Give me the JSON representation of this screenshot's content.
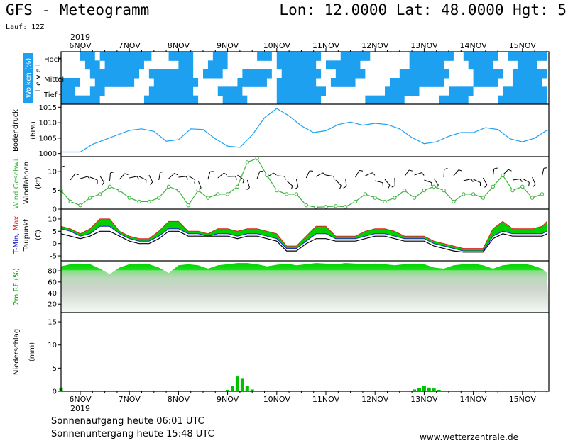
{
  "header": {
    "title": "GFS - Meteogramm",
    "coords": "Lon: 12.0000 Lat: 48.0000 Hgt: 5",
    "run": "Lauf: 12Z"
  },
  "footer": {
    "sunrise": "Sonnenaufgang heute 06:01 UTC",
    "sunset": "Sonnenuntergang heute 15:48 UTC",
    "credit": "www.wetterzentrale.de"
  },
  "colors": {
    "cloud": "#1ea0f0",
    "pressure": "#1ea0f0",
    "wind": "#3cb43c",
    "tmin": "#2020d0",
    "tmax": "#e02020",
    "dew": "#000000",
    "rh": "#00d000",
    "precip": "#00c000"
  },
  "chart_data": {
    "type": "meteogram",
    "year_label": "2019",
    "days": [
      "6NOV",
      "7NOV",
      "8NOV",
      "9NOV",
      "10NOV",
      "11NOV",
      "12NOV",
      "13NOV",
      "14NOV",
      "15NOV"
    ],
    "panels": [
      {
        "id": "clouds",
        "ylabel": "Wolken (%)",
        "ylabel2": "L e v e l",
        "levels": [
          "Hoch",
          "Mittel",
          "Tief"
        ]
      },
      {
        "id": "pressure",
        "ylabel": "Bodendruck",
        "unit": "(hPa)",
        "yticks": [
          1000,
          1005,
          1010,
          1015
        ],
        "ylim": [
          999,
          1016
        ],
        "x": [
          6,
          6.25,
          6.5,
          6.75,
          7,
          7.25,
          7.5,
          7.75,
          8,
          8.25,
          8.5,
          8.75,
          9,
          9.25,
          9.5,
          9.75,
          10,
          10.25,
          10.5,
          10.75,
          11,
          11.25,
          11.5,
          11.75,
          12,
          12.25,
          12.5,
          12.75,
          13,
          13.25,
          13.5,
          13.75,
          14,
          14.25,
          14.5,
          14.75,
          15,
          15.25,
          15.5
        ],
        "values": [
          1000.5,
          1003,
          1004.5,
          1006,
          1007.5,
          1008,
          1007.2,
          1004,
          1004.5,
          1008,
          1007.8,
          1004.8,
          1002.4,
          1002,
          1006,
          1011.6,
          1014.6,
          1012.2,
          1009,
          1006.8,
          1007.4,
          1009.4,
          1010.2,
          1009.2,
          1009.8,
          1009.4,
          1008,
          1005.2,
          1003.2,
          1003.8,
          1005.6,
          1006.8,
          1006.8,
          1008.4,
          1007.8,
          1004.8,
          1003.8,
          1005,
          1007.6
        ]
      },
      {
        "id": "wind",
        "ylabel": "Wind Geschwi.",
        "ylabel2": "Windfahnen",
        "unit": "(kt)",
        "yticks": [
          0,
          5,
          10
        ],
        "ylim": [
          0,
          14
        ],
        "x": [
          5.6,
          5.8,
          6,
          6.2,
          6.4,
          6.6,
          6.8,
          7,
          7.2,
          7.4,
          7.6,
          7.8,
          8,
          8.2,
          8.4,
          8.6,
          8.8,
          9,
          9.2,
          9.4,
          9.6,
          9.8,
          10,
          10.2,
          10.4,
          10.6,
          10.8,
          11,
          11.2,
          11.4,
          11.6,
          11.8,
          12,
          12.2,
          12.4,
          12.6,
          12.8,
          13,
          13.2,
          13.4,
          13.6,
          13.8,
          14,
          14.2,
          14.4,
          14.6,
          14.8,
          15,
          15.2,
          15.4
        ],
        "values": [
          5,
          2,
          1,
          3,
          4,
          6,
          5,
          3,
          2,
          2,
          3,
          6,
          5,
          1,
          5,
          3,
          4,
          4,
          6,
          12.5,
          13.5,
          9,
          5,
          4,
          4,
          1,
          0.5,
          0.6,
          0.8,
          0.6,
          2,
          4,
          3,
          2,
          3,
          5,
          3,
          5,
          6,
          5,
          2,
          4,
          4,
          3,
          6,
          9,
          5,
          6,
          3,
          4
        ]
      },
      {
        "id": "temp",
        "ylabel": "T-Min, Max",
        "ylabel2": "Taupunkt",
        "unit": "(C)",
        "yticks": [
          -5,
          0,
          5,
          10
        ],
        "ylim": [
          -7,
          14
        ],
        "x": [
          5.6,
          5.8,
          6,
          6.2,
          6.4,
          6.6,
          6.8,
          7,
          7.2,
          7.4,
          7.6,
          7.8,
          8,
          8.2,
          8.4,
          8.6,
          8.8,
          9,
          9.2,
          9.4,
          9.6,
          9.8,
          10,
          10.2,
          10.4,
          10.6,
          10.8,
          11,
          11.2,
          11.4,
          11.6,
          11.8,
          12,
          12.2,
          12.4,
          12.6,
          12.8,
          13,
          13.2,
          13.4,
          13.6,
          13.8,
          14,
          14.2,
          14.4,
          14.6,
          14.8,
          15,
          15.2,
          15.4,
          15.5
        ],
        "tmax": [
          7,
          6,
          4,
          6,
          10,
          10,
          5,
          3,
          2,
          2,
          5,
          9,
          9,
          5,
          5,
          4,
          6,
          6,
          5,
          6,
          6,
          5,
          4,
          -1,
          -1,
          3,
          7,
          7,
          3,
          3,
          3,
          5,
          6,
          6,
          5,
          3,
          3,
          3,
          1,
          0,
          -1,
          -2,
          -2,
          -2,
          6,
          9,
          6,
          6,
          6,
          7,
          9
        ],
        "tmin": [
          6,
          5,
          3,
          4,
          7,
          7,
          4,
          2,
          1,
          1,
          3,
          6,
          6,
          4,
          4,
          3,
          4,
          4,
          3,
          4,
          4,
          3,
          2,
          -2,
          -2,
          1,
          4,
          4,
          2,
          2,
          2,
          3,
          4,
          4,
          3,
          2,
          2,
          2,
          0,
          -1,
          -2,
          -3,
          -3,
          -3,
          3,
          5,
          4,
          4,
          4,
          4,
          5
        ],
        "dew": [
          4,
          3,
          2,
          3,
          5,
          5,
          3,
          1,
          0,
          0,
          2,
          5,
          5,
          3,
          3,
          3,
          3,
          3,
          2,
          3,
          3,
          2,
          1,
          -3,
          -3,
          0,
          2,
          2,
          1,
          1,
          1,
          2,
          3,
          3,
          2,
          1,
          1,
          1,
          -1,
          -2,
          -3,
          -3.5,
          -3.5,
          -3.5,
          2,
          4,
          3,
          3,
          3,
          3,
          4
        ]
      },
      {
        "id": "rh",
        "ylabel": "2m RF (%)",
        "yticks": [
          20,
          40,
          60,
          80
        ],
        "ylim": [
          5,
          98
        ],
        "x": [
          5.6,
          5.8,
          6,
          6.2,
          6.4,
          6.6,
          6.8,
          7,
          7.2,
          7.4,
          7.6,
          7.8,
          8,
          8.2,
          8.4,
          8.6,
          8.8,
          9,
          9.2,
          9.4,
          9.6,
          9.8,
          10,
          10.2,
          10.4,
          10.6,
          10.8,
          11,
          11.2,
          11.4,
          11.6,
          11.8,
          12,
          12.2,
          12.4,
          12.6,
          12.8,
          13,
          13.2,
          13.4,
          13.6,
          13.8,
          14,
          14.2,
          14.4,
          14.6,
          14.8,
          15,
          15.2,
          15.4,
          15.5
        ],
        "values": [
          88,
          92,
          93,
          92,
          84,
          74,
          86,
          92,
          93,
          92,
          86,
          76,
          90,
          92,
          90,
          84,
          90,
          92,
          94,
          94,
          92,
          88,
          91,
          93,
          90,
          92,
          94,
          93,
          92,
          94,
          93,
          92,
          93,
          92,
          90,
          92,
          93,
          92,
          86,
          84,
          90,
          92,
          93,
          90,
          84,
          90,
          92,
          93,
          90,
          84,
          76
        ]
      },
      {
        "id": "precip",
        "ylabel": "Niederschlag",
        "unit": "(mm)",
        "yticks": [
          0,
          5,
          10,
          15
        ],
        "ylim": [
          0,
          17
        ],
        "x": [
          5.6,
          8.2,
          8.6,
          9.0,
          9.1,
          9.2,
          9.3,
          9.4,
          9.5,
          12.8,
          12.9,
          13.0,
          13.1,
          13.2,
          13.3
        ],
        "values": [
          0.8,
          0.1,
          0.1,
          0.3,
          1.2,
          3.2,
          2.7,
          1.2,
          0.4,
          0.4,
          0.7,
          1.2,
          0.8,
          0.6,
          0.3
        ]
      }
    ]
  }
}
